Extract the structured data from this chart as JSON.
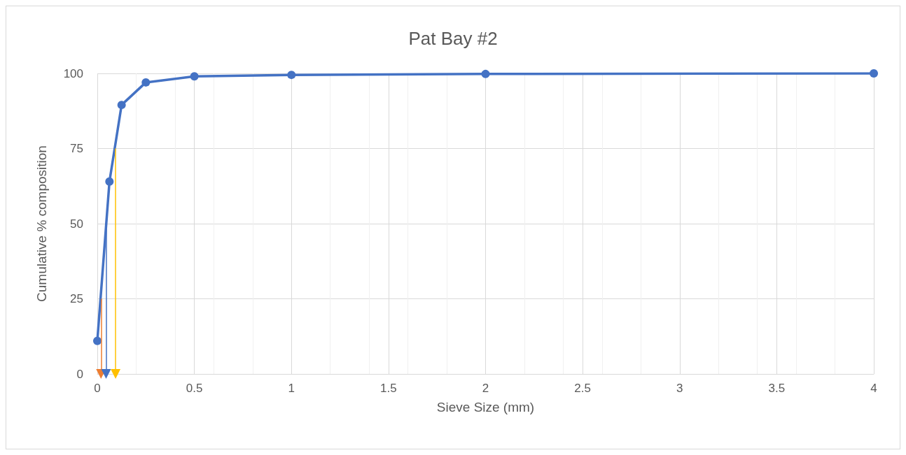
{
  "chart_data": {
    "type": "line",
    "title": "Pat Bay #2",
    "xlabel": "Sieve Size (mm)",
    "ylabel": "Cumulative % composition",
    "xlim": [
      0,
      4
    ],
    "xticks": [
      0,
      0.5,
      1,
      1.5,
      2,
      2.5,
      3,
      3.5,
      4
    ],
    "ylim": [
      0,
      100
    ],
    "yticks": [
      0,
      25,
      50,
      75,
      100
    ],
    "grid": true,
    "series": [
      {
        "color": "#4472c4",
        "x": [
          0,
          0.0625,
          0.125,
          0.25,
          0.5,
          1,
          2,
          4
        ],
        "values": [
          11,
          64,
          89.5,
          97,
          99,
          99.5,
          99.8,
          100
        ],
        "marker": "circle"
      },
      {
        "color": "#ed7d31",
        "x": [
          0.019,
          0.019
        ],
        "values": [
          25,
          0
        ],
        "marker": "triangle"
      },
      {
        "color": "#4472c4",
        "x": [
          0.045,
          0.045
        ],
        "values": [
          50,
          0
        ],
        "marker": "triangle"
      },
      {
        "color": "#ffc000",
        "x": [
          0.094,
          0.094
        ],
        "values": [
          75,
          0
        ],
        "marker": "triangle"
      }
    ]
  }
}
